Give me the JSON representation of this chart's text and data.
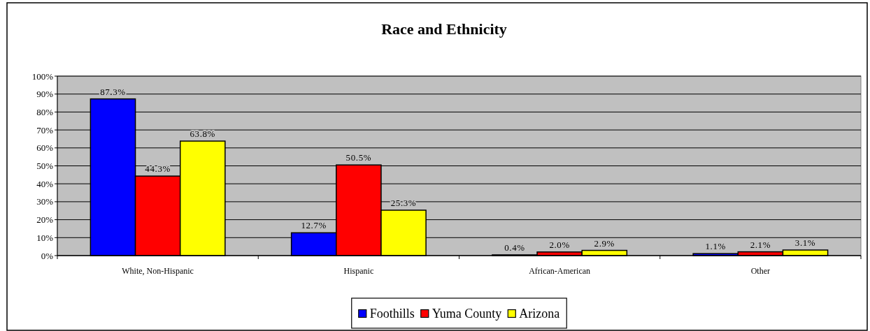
{
  "chart_data": {
    "type": "bar",
    "title": "Race and Ethnicity",
    "categories": [
      "White, Non-Hispanic",
      "Hispanic",
      "African-American",
      "Other"
    ],
    "series": [
      {
        "name": "Foothills",
        "color": "#0000ff",
        "values": [
          87.3,
          12.7,
          0.4,
          1.1
        ],
        "value_labels": [
          "87.3%",
          "12.7%",
          "0.4%",
          "1.1%"
        ]
      },
      {
        "name": "Yuma County",
        "color": "#ff0000",
        "values": [
          44.3,
          50.5,
          2.0,
          2.1
        ],
        "value_labels": [
          "44.3%",
          "50.5%",
          "2.0%",
          "2.1%"
        ]
      },
      {
        "name": "Arizona",
        "color": "#ffff00",
        "values": [
          63.8,
          25.3,
          2.9,
          3.1
        ],
        "value_labels": [
          "63.8%",
          "25.3%",
          "2.9%",
          "3.1%"
        ]
      }
    ],
    "ylim": [
      0,
      100
    ],
    "yticks": [
      {
        "value": 0,
        "label": "0%"
      },
      {
        "value": 10,
        "label": "10%"
      },
      {
        "value": 20,
        "label": "20%"
      },
      {
        "value": 30,
        "label": "30%"
      },
      {
        "value": 40,
        "label": "40%"
      },
      {
        "value": 50,
        "label": "50%"
      },
      {
        "value": 60,
        "label": "60%"
      },
      {
        "value": 70,
        "label": "70%"
      },
      {
        "value": 80,
        "label": "80%"
      },
      {
        "value": 90,
        "label": "90%"
      },
      {
        "value": 100,
        "label": "100%"
      }
    ],
    "grid": "y",
    "legend": "bottom"
  }
}
